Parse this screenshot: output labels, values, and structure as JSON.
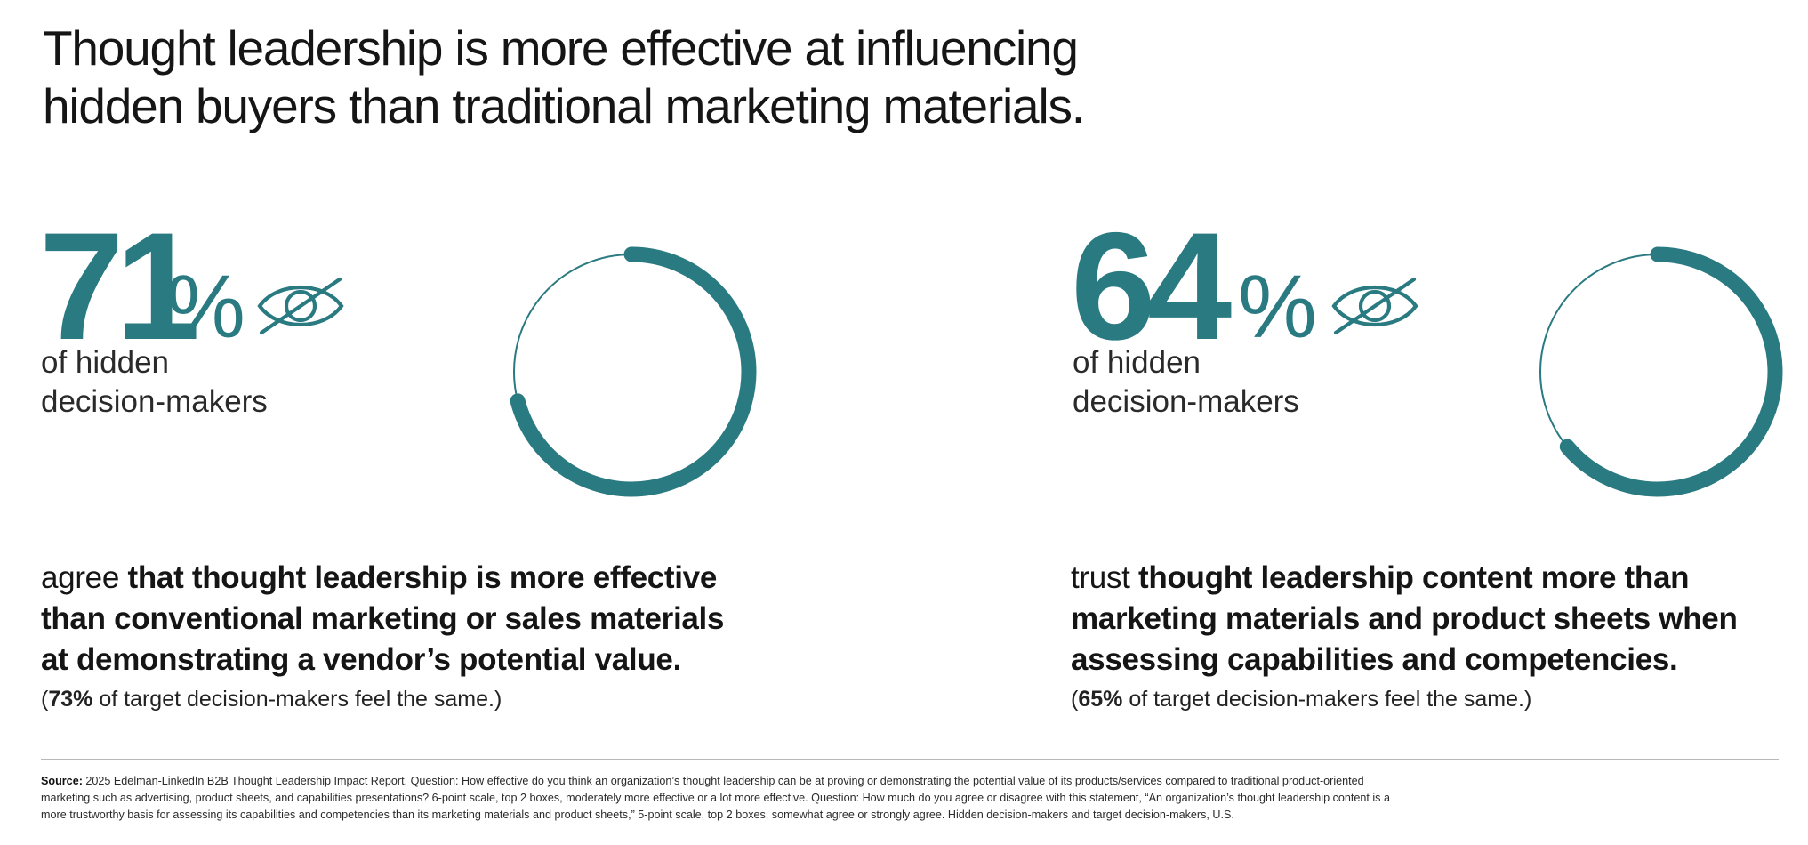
{
  "header": {
    "title_line1": "Thought leadership is more effective at influencing",
    "title_line2": "hidden buyers than traditional marketing materials."
  },
  "colors": {
    "accent": "#2a7a82",
    "track": "#2a7a82",
    "text": "#151515"
  },
  "chart_data": [
    {
      "type": "pie",
      "variant": "donut-progress",
      "value_percent": 71,
      "value_label": "71",
      "unit": "%",
      "icon": "eye-slash-icon",
      "subtitle_line1": "of hidden",
      "subtitle_line2": "decision-makers",
      "statement_lead": "agree",
      "statement_bold": "that thought leadership is more effective than conventional marketing or sales materials at demonstrating a vendor’s potential value.",
      "note_open": "(",
      "note_value": "73%",
      "note_rest": " of target decision-makers feel the same.)"
    },
    {
      "type": "pie",
      "variant": "donut-progress",
      "value_percent": 64,
      "value_label": "64",
      "unit": "%",
      "icon": "eye-slash-icon",
      "subtitle_line1": "of hidden",
      "subtitle_line2": "decision-makers",
      "statement_lead": "trust",
      "statement_bold": "thought leadership content more than marketing materials and product sheets when assessing capabilities and competencies.",
      "note_open": "(",
      "note_value": "65%",
      "note_rest": " of target decision-makers feel the same.)"
    }
  ],
  "footer": {
    "source_label": "Source:",
    "source_text": "2025 Edelman-LinkedIn B2B Thought Leadership Impact Report. Question: How effective do you think an organization’s thought leadership can be at proving or demonstrating the potential value of its products/services compared to traditional product-oriented marketing such as advertising, product sheets, and capabilities presentations? 6-point scale, top 2 boxes, moderately more effective or a lot more effective. Question: How much do you agree or disagree with this statement, “An organization’s thought leadership content is a more trustworthy basis for assessing its capabilities and competencies than its marketing materials and product sheets,” 5-point scale, top 2 boxes, somewhat agree or strongly agree. Hidden decision-makers and target decision-makers, U.S."
  }
}
